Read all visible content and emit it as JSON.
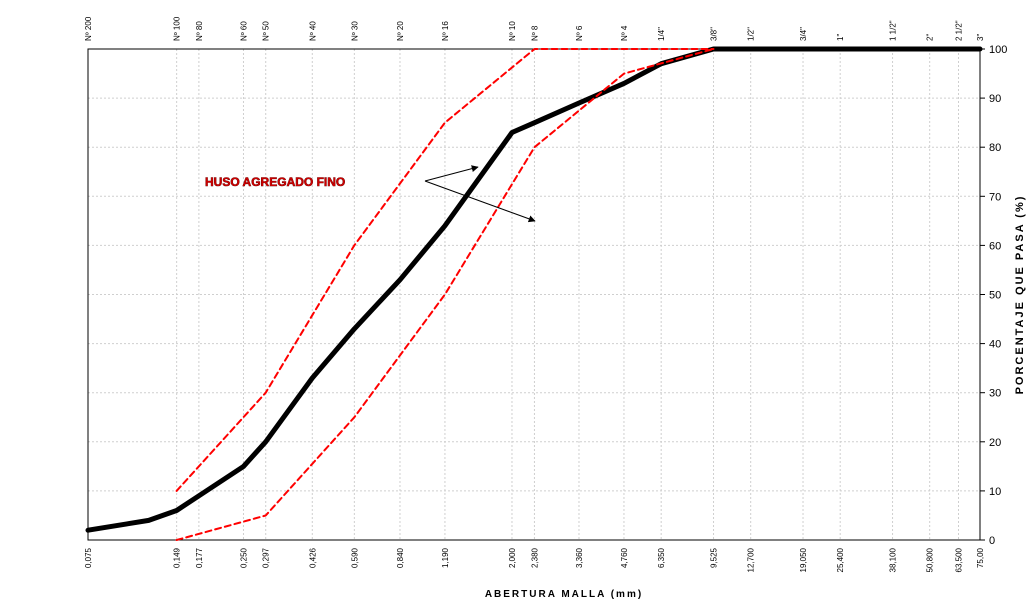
{
  "chart_data": {
    "type": "line",
    "xscale": "log",
    "xlim": [
      0.075,
      75
    ],
    "ylim": [
      0,
      100
    ],
    "grid": true,
    "xlabel": "ABERTURA MALLA (mm)",
    "ylabel": "PORCENTAJE QUE PASA (%)",
    "yticks": [
      "0",
      "10",
      "20",
      "30",
      "40",
      "50",
      "60",
      "70",
      "80",
      "90",
      "100"
    ],
    "sieves": [
      {
        "name": "Nº 200",
        "mm": 0.075,
        "label": "0,075"
      },
      {
        "name": "Nº 100",
        "mm": 0.149,
        "label": "0,149"
      },
      {
        "name": "Nº 80",
        "mm": 0.177,
        "label": "0,177"
      },
      {
        "name": "Nº 60",
        "mm": 0.25,
        "label": "0,250"
      },
      {
        "name": "Nº 50",
        "mm": 0.297,
        "label": "0,297"
      },
      {
        "name": "Nº 40",
        "mm": 0.426,
        "label": "0,426"
      },
      {
        "name": "Nº 30",
        "mm": 0.59,
        "label": "0,590"
      },
      {
        "name": "Nº 20",
        "mm": 0.84,
        "label": "0,840"
      },
      {
        "name": "Nº 16",
        "mm": 1.19,
        "label": "1,190"
      },
      {
        "name": "Nº 10",
        "mm": 2.0,
        "label": "2,000"
      },
      {
        "name": "Nº 8",
        "mm": 2.38,
        "label": "2,380"
      },
      {
        "name": "Nº 6",
        "mm": 3.36,
        "label": "3,360"
      },
      {
        "name": "Nº 4",
        "mm": 4.76,
        "label": "4,760"
      },
      {
        "name": "1/4\"",
        "mm": 6.35,
        "label": "6,350"
      },
      {
        "name": "3/8\"",
        "mm": 9.525,
        "label": "9,525"
      },
      {
        "name": "1/2\"",
        "mm": 12.7,
        "label": "12,700"
      },
      {
        "name": "3/4\"",
        "mm": 19.05,
        "label": "19,050"
      },
      {
        "name": "1\"",
        "mm": 25.4,
        "label": "25,400"
      },
      {
        "name": "1 1/2\"",
        "mm": 38.1,
        "label": "38,100"
      },
      {
        "name": "2\"",
        "mm": 50.8,
        "label": "50,800"
      },
      {
        "name": "2 1/2\"",
        "mm": 63.5,
        "label": "63,500"
      },
      {
        "name": "3\"",
        "mm": 75.0,
        "label": "75,00"
      }
    ],
    "series": [
      {
        "color": "#000000",
        "style": "solid",
        "x": [
          0.075,
          0.12,
          0.149,
          0.177,
          0.25,
          0.297,
          0.426,
          0.59,
          0.84,
          1.19,
          2.0,
          2.38,
          3.36,
          4.76,
          6.35,
          9.525,
          12.7,
          75.0
        ],
        "y": [
          2,
          4,
          6,
          9,
          15,
          20,
          33,
          43,
          53,
          64,
          83,
          85,
          89,
          93,
          97,
          100,
          100,
          100
        ]
      },
      {
        "color": "#ff0000",
        "style": "dashed",
        "x": [
          0.149,
          0.297,
          0.59,
          1.19,
          2.38,
          4.76,
          9.525
        ],
        "y": [
          10,
          30,
          60,
          85,
          100,
          100,
          100
        ]
      },
      {
        "color": "#ff0000",
        "style": "dashed",
        "x": [
          0.149,
          0.297,
          0.59,
          1.19,
          2.38,
          4.76,
          9.525
        ],
        "y": [
          0,
          5,
          25,
          50,
          80,
          95,
          100
        ]
      }
    ],
    "annotations": [
      {
        "text": "HUSO AGREGADO FINO",
        "color": "#cc0000"
      }
    ]
  }
}
